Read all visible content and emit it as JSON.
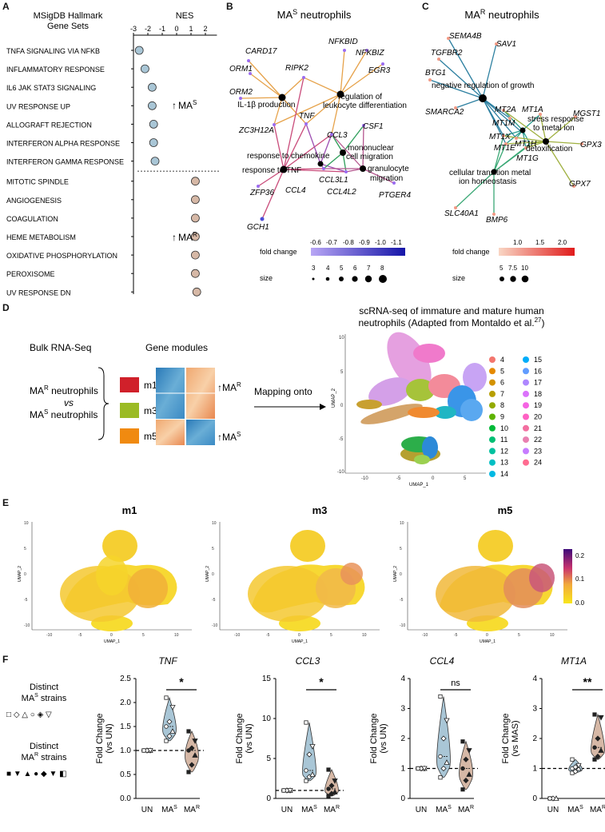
{
  "panel_letters": {
    "a": "A",
    "b": "B",
    "c": "C",
    "d": "D",
    "e": "E",
    "f": "F"
  },
  "panelA": {
    "title_line1": "MSigDB Hallmark",
    "title_line2": "Gene Sets",
    "nes_label": "NES",
    "sens_arrow": "↑",
    "sens_label": "MA",
    "sens_sup": "S",
    "res_label": "MA",
    "res_sup": "R",
    "colors": {
      "sensitive": "#a9c6d6",
      "resistant": "#d6b8a6"
    }
  },
  "chart_data": [
    {
      "type": "scatter",
      "title": "MSigDB Hallmark Gene Sets",
      "xlabel": "NES",
      "xlim": [
        -3,
        3
      ],
      "ticks": [
        "-3",
        "-2",
        "-1",
        "0",
        "1",
        "2"
      ],
      "tick_values": [
        -3,
        -2,
        -1,
        0,
        1,
        2
      ],
      "categories": [
        "TNFA SIGNALING VIA NFKB",
        "INFLAMMATORY RESPONSE",
        "IL6 JAK STAT3 SIGNALING",
        "UV RESPONSE UP",
        "ALLOGRAFT REJECTION",
        "INTERFERON ALPHA RESPONSE",
        "INTERFERON GAMMA RESPONSE",
        "MITOTIC SPINDLE",
        "ANGIOGENESIS",
        "COAGULATION",
        "HEME METABOLISM",
        "OXIDATIVE PHOSPHORYLATION",
        "PEROXISOME",
        "UV RESPONSE DN"
      ],
      "values": [
        -2.6,
        -2.2,
        -1.7,
        -1.7,
        -1.6,
        -1.6,
        -1.5,
        1.3,
        1.3,
        1.3,
        1.3,
        1.3,
        1.3,
        1.4
      ]
    },
    {
      "type": "violin",
      "title": "TNF",
      "ylabel": "Fold Change (vs UN)",
      "categories": [
        "UN",
        "MAS",
        "MAR"
      ],
      "ylim": [
        0,
        2.5
      ],
      "yticks": [
        "0.0",
        "0.5",
        "1.0",
        "1.5",
        "2.0",
        "2.5"
      ],
      "ytick_values": [
        0,
        0.5,
        1,
        1.5,
        2,
        2.5
      ],
      "series": [
        {
          "name": "UN",
          "values": [
            1,
            1,
            1,
            1,
            1,
            1,
            1
          ]
        },
        {
          "name": "MAS",
          "values": [
            1.2,
            1.3,
            1.4,
            1.5,
            1.6,
            1.9,
            2.1
          ]
        },
        {
          "name": "MAR",
          "values": [
            0.55,
            0.7,
            0.9,
            1.0,
            1.05,
            1.2,
            1.4
          ]
        }
      ],
      "significance": "*"
    },
    {
      "type": "violin",
      "title": "CCL3",
      "ylabel": "Fold Change (vs UN)",
      "categories": [
        "UN",
        "MAS",
        "MAR"
      ],
      "ylim": [
        0,
        15
      ],
      "yticks": [
        "0",
        "5",
        "10",
        "15"
      ],
      "ytick_values": [
        0,
        5,
        10,
        15
      ],
      "series": [
        {
          "name": "UN",
          "values": [
            1,
            1,
            1,
            1,
            1,
            1,
            1
          ]
        },
        {
          "name": "MAS",
          "values": [
            2.2,
            2.7,
            3.0,
            3.5,
            5.5,
            6.5,
            9.5
          ]
        },
        {
          "name": "MAR",
          "values": [
            0.3,
            0.6,
            0.8,
            1.2,
            1.6,
            2.2,
            3.6
          ]
        }
      ],
      "significance": "*"
    },
    {
      "type": "violin",
      "title": "CCL4",
      "ylabel": "Fold Change (vs UN)",
      "categories": [
        "UN",
        "MAS",
        "MAR"
      ],
      "ylim": [
        0,
        4
      ],
      "yticks": [
        "0",
        "1",
        "2",
        "3",
        "4"
      ],
      "ytick_values": [
        0,
        1,
        2,
        3,
        4
      ],
      "series": [
        {
          "name": "UN",
          "values": [
            1,
            1,
            1,
            1,
            1,
            1,
            1
          ]
        },
        {
          "name": "MAS",
          "values": [
            0.7,
            1.0,
            1.2,
            1.4,
            2.0,
            2.6,
            3.4
          ]
        },
        {
          "name": "MAR",
          "values": [
            0.3,
            0.6,
            0.8,
            1.0,
            1.3,
            1.6,
            1.9
          ]
        }
      ],
      "significance": "ns"
    },
    {
      "type": "violin",
      "title": "MT1A",
      "ylabel": "Fold Change (vs MAS)",
      "categories": [
        "UN",
        "MAS",
        "MAR"
      ],
      "ylim": [
        0,
        4
      ],
      "yticks": [
        "0",
        "1",
        "2",
        "3",
        "4"
      ],
      "ytick_values": [
        0,
        1,
        2,
        3,
        4
      ],
      "series": [
        {
          "name": "UN",
          "values": [
            0,
            0,
            0,
            0
          ]
        },
        {
          "name": "MAS",
          "values": [
            0.85,
            0.9,
            1.0,
            1.0,
            1.05,
            1.1,
            1.3
          ]
        },
        {
          "name": "MAR",
          "values": [
            1.3,
            1.4,
            1.6,
            1.7,
            2.0,
            2.7,
            2.8
          ]
        }
      ],
      "significance": "**"
    }
  ],
  "panelB": {
    "title": "MA",
    "title_sup": "S",
    "title_rest": " neutrophils",
    "genes": [
      "CARD17",
      "ORM1",
      "RIPK2",
      "NFKBID",
      "NFKBIZ",
      "EGR3",
      "ORM2",
      "TNF",
      "ZC3H12A",
      "CCL3",
      "CSF1",
      "CCL3L1",
      "CCL4",
      "CCL4L2",
      "ZFP36",
      "GCH1",
      "PTGER4"
    ],
    "terms": [
      "IL-1β production",
      "regulation of",
      "leukocyte differentiation",
      "response to chemokine",
      "response to TNF",
      "mononuclear",
      "cell migration",
      "granulocyte",
      "migration"
    ],
    "legend_fc": "fold change",
    "legend_fc_ticks": [
      "-0.6",
      "-0.7",
      "-0.8",
      "-0.9",
      "-1.0",
      "-1.1"
    ],
    "legend_size": "size",
    "legend_size_ticks": [
      "3",
      "4",
      "5",
      "6",
      "7",
      "8"
    ]
  },
  "panelC": {
    "title": "MA",
    "title_sup": "R",
    "title_rest": " neutrophils",
    "genes": [
      "SEMA4B",
      "SAV1",
      "TGFBR2",
      "BTG1",
      "MGST1",
      "SMARCA2",
      "MT2A",
      "MT1A",
      "MT1M",
      "MT1X",
      "MT1E",
      "MT1H",
      "MT1G",
      "GPX3",
      "GPX7",
      "SLC40A1",
      "BMP6"
    ],
    "terms": [
      "negative regulation of growth",
      "stress response",
      "to metal ion",
      "detoxification",
      "cellular transition metal",
      "ion homeostasis"
    ],
    "legend_fc": "fold change",
    "legend_fc_ticks": [
      "1.0",
      "1.5",
      "2.0"
    ],
    "legend_size": "size",
    "legend_size_ticks": [
      "5",
      "7.5",
      "10"
    ]
  },
  "panelD": {
    "bulk": "Bulk RNA-Seq",
    "gene_modules": "Gene modules",
    "group_r": "MA",
    "group_r_sup": "R",
    "group_r_rest": " neutrophils",
    "vs": "vs",
    "group_s": "MA",
    "group_s_sup": "S",
    "group_s_rest": " neutrophils",
    "modules": [
      "m1",
      "m3",
      "m5"
    ],
    "module_colors": [
      "#d0202a",
      "#9bbb25",
      "#f08a10"
    ],
    "arrow": "↑",
    "up_r": "MA",
    "up_r_sup": "R",
    "up_s": "MA",
    "up_s_sup": "S",
    "mapping": "Mapping onto",
    "sc_title1": "scRNA-seq of immature and mature human",
    "sc_title2": "neutrophils (Adapted from Montaldo et al.",
    "sc_title_sup": "27",
    "sc_title_end": ")",
    "umap_x": "UMAP_1",
    "umap_y": "UMAP_2",
    "x_ticks": [
      "-10",
      "-5",
      "0",
      "5"
    ],
    "y_ticks": [
      "10",
      "5",
      "0",
      "-5",
      "-10"
    ],
    "clusters": [
      "4",
      "5",
      "6",
      "7",
      "8",
      "9",
      "10",
      "11",
      "12",
      "13",
      "14",
      "15",
      "16",
      "17",
      "18",
      "19",
      "20",
      "21",
      "22",
      "23",
      "24"
    ],
    "cluster_colors": [
      "#f3766e",
      "#e58a00",
      "#d39200",
      "#b79f00",
      "#93aa00",
      "#5eb300",
      "#00ba38",
      "#00bf74",
      "#00c19f",
      "#00bfc4",
      "#00b9e3",
      "#00adfa",
      "#619cff",
      "#ae87ff",
      "#db72fb",
      "#f564e3",
      "#ff61c3",
      "#f36fa0",
      "#e980b0",
      "#c77cff",
      "#ff6c91"
    ]
  },
  "panelE": {
    "titles": [
      "m1",
      "m3",
      "m5"
    ],
    "umap_x": "UMAP_1",
    "umap_y": "UMAP_2",
    "x_ticks": [
      "-10",
      "-5",
      "0",
      "5",
      "10"
    ],
    "y_ticks": [
      "10",
      "5",
      "0",
      "-5",
      "-10"
    ],
    "colorbar_ticks": [
      "0.2",
      "0.1",
      "0.0"
    ]
  },
  "panelF": {
    "legend_s_line1": "Distinct",
    "legend_s_line2": "MA",
    "legend_s_sup": "S",
    "legend_s_line3": " strains",
    "legend_s_symbols": "□ ◇ △ ○ ◈ ▽",
    "legend_r_line1": "Distinct",
    "legend_r_line2": "MA",
    "legend_r_sup": "R",
    "legend_r_line3": " strains",
    "legend_r_symbols": "■ ▼ ▲ ● ◆ ▼ ◧",
    "x_un": "UN",
    "x_ma": "MA",
    "sup_s": "S",
    "sup_r": "R",
    "colors": {
      "s": "#a9c6d6",
      "r": "#d6b8a6"
    }
  }
}
